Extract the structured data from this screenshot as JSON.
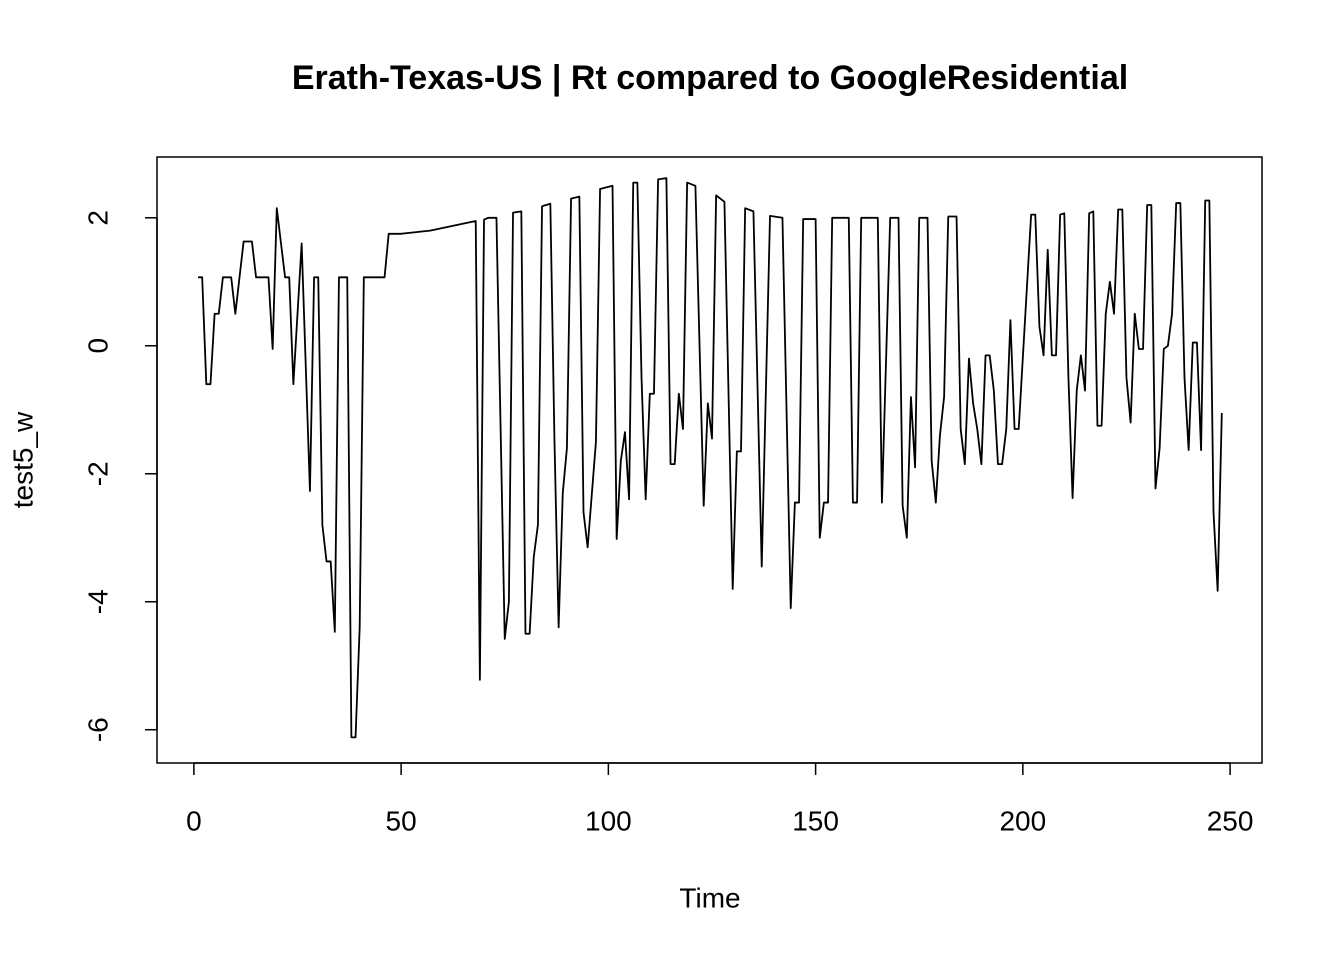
{
  "chart_data": {
    "type": "line",
    "title": "Erath-Texas-US | Rt compared to GoogleResidential",
    "xlabel": "Time",
    "ylabel": "test5_w",
    "x": [
      1,
      2,
      3,
      4,
      5,
      6,
      7,
      9,
      10,
      12,
      14,
      15,
      18,
      19,
      20,
      22,
      23,
      24,
      26,
      28,
      29,
      30,
      31,
      32,
      33,
      34,
      35,
      37,
      38,
      39,
      40,
      41,
      46,
      47,
      50,
      57,
      68,
      69,
      70,
      71,
      73,
      75,
      76,
      77,
      79,
      80,
      81,
      82,
      83,
      84,
      86,
      87,
      88,
      89,
      90,
      91,
      93,
      94,
      95,
      97,
      98,
      101,
      102,
      103,
      104,
      105,
      106,
      107,
      108,
      109,
      110,
      111,
      112,
      114,
      115,
      116,
      117,
      118,
      119,
      121,
      123,
      124,
      125,
      126,
      128,
      130,
      131,
      132,
      133,
      135,
      137,
      139,
      142,
      144,
      145,
      146,
      147,
      150,
      151,
      152,
      153,
      154,
      158,
      159,
      160,
      161,
      165,
      166,
      168,
      170,
      171,
      172,
      173,
      174,
      175,
      177,
      178,
      179,
      180,
      181,
      182,
      184,
      185,
      186,
      187,
      188,
      189,
      190,
      191,
      192,
      193,
      194,
      195,
      196,
      197,
      198,
      199,
      202,
      203,
      204,
      205,
      206,
      207,
      208,
      209,
      210,
      211,
      212,
      213,
      214,
      215,
      216,
      217,
      218,
      219,
      220,
      221,
      222,
      223,
      224,
      225,
      226,
      227,
      228,
      229,
      230,
      231,
      232,
      233,
      234,
      235,
      236,
      237,
      238,
      239,
      240,
      241,
      242,
      243,
      244,
      245,
      246,
      247,
      248
    ],
    "series": [
      {
        "name": "test5_w",
        "color": "#000000",
        "values": [
          1.07,
          1.07,
          -0.6,
          -0.6,
          0.5,
          0.5,
          1.07,
          1.07,
          0.5,
          1.63,
          1.63,
          1.07,
          1.07,
          -0.05,
          2.15,
          1.07,
          1.07,
          -0.6,
          1.6,
          -2.27,
          1.07,
          1.07,
          -2.8,
          -3.37,
          -3.37,
          -4.47,
          1.07,
          1.07,
          -6.12,
          -6.12,
          -4.4,
          1.07,
          1.07,
          1.75,
          1.75,
          1.8,
          1.95,
          -5.22,
          1.97,
          2.0,
          2.0,
          -4.58,
          -4.0,
          2.08,
          2.1,
          -4.5,
          -4.5,
          -3.3,
          -2.8,
          2.18,
          2.22,
          -1.5,
          -4.4,
          -2.3,
          -1.6,
          2.3,
          2.33,
          -2.6,
          -3.15,
          -1.5,
          2.45,
          2.5,
          -3.02,
          -1.8,
          -1.35,
          -2.4,
          2.55,
          2.55,
          -0.5,
          -2.4,
          -0.75,
          -0.75,
          2.6,
          2.62,
          -1.85,
          -1.85,
          -0.75,
          -1.3,
          2.55,
          2.5,
          -2.5,
          -0.9,
          -1.45,
          2.35,
          2.25,
          -3.8,
          -1.65,
          -1.65,
          2.15,
          2.1,
          -3.45,
          2.03,
          2.0,
          -4.1,
          -2.45,
          -2.45,
          1.98,
          1.98,
          -3.0,
          -2.45,
          -2.45,
          2.0,
          2.0,
          -2.45,
          -2.45,
          2.0,
          2.0,
          -2.45,
          2.0,
          2.0,
          -2.5,
          -3.0,
          -0.8,
          -1.9,
          2.0,
          2.0,
          -1.8,
          -2.45,
          -1.4,
          -0.8,
          2.02,
          2.02,
          -1.3,
          -1.85,
          -0.2,
          -0.9,
          -1.3,
          -1.85,
          -0.15,
          -0.15,
          -0.7,
          -1.85,
          -1.85,
          -1.3,
          0.4,
          -1.3,
          -1.3,
          2.05,
          2.05,
          0.3,
          -0.15,
          1.5,
          -0.15,
          -0.15,
          2.05,
          2.07,
          -0.5,
          -2.38,
          -0.7,
          -0.15,
          -0.7,
          2.07,
          2.1,
          -1.25,
          -1.25,
          0.5,
          1.0,
          0.5,
          2.13,
          2.13,
          -0.5,
          -1.2,
          0.5,
          -0.05,
          -0.05,
          2.2,
          2.2,
          -2.23,
          -1.6,
          -0.05,
          0,
          0.5,
          2.23,
          2.23,
          -0.5,
          -1.63,
          0.05,
          0.05,
          -1.63,
          2.27,
          2.27,
          -2.6,
          -3.83,
          -1.05
        ]
      }
    ],
    "xlim": [
      -8.9,
      257.7
    ],
    "ylim": [
      -6.52,
      2.95
    ],
    "xticks": [
      0,
      50,
      100,
      150,
      200,
      250
    ],
    "yticks": [
      -6,
      -4,
      -2,
      0,
      2
    ],
    "grid": false
  }
}
